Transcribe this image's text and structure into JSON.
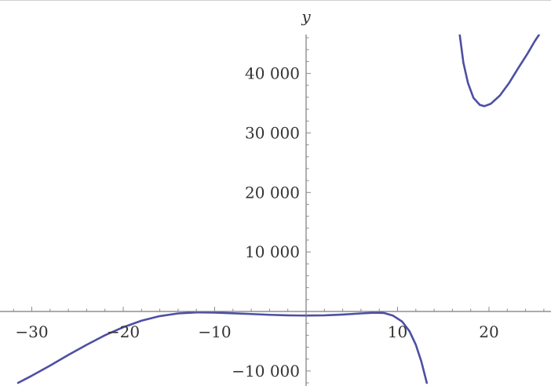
{
  "chart_data": {
    "type": "line",
    "title": "",
    "xlabel": "",
    "ylabel": "y",
    "xlim": [
      -33,
      26
    ],
    "ylim": [
      -12000,
      47000
    ],
    "grid": false,
    "x_ticks": [
      {
        "value": -30,
        "label": "−30"
      },
      {
        "value": -20,
        "label": "−20"
      },
      {
        "value": -10,
        "label": "−10"
      },
      {
        "value": 10,
        "label": "10"
      },
      {
        "value": 20,
        "label": "20"
      }
    ],
    "y_ticks": [
      {
        "value": -10000,
        "label": "−10 000"
      },
      {
        "value": 10000,
        "label": "10 000"
      },
      {
        "value": 20000,
        "label": "20 000"
      },
      {
        "value": 30000,
        "label": "30 000"
      },
      {
        "value": 40000,
        "label": "40 000"
      }
    ],
    "series": [
      {
        "color": "#4d4fa3",
        "segments": [
          [
            [
              -31.5,
              -12000
            ],
            [
              -30,
              -10800
            ],
            [
              -28,
              -9100
            ],
            [
              -26,
              -7300
            ],
            [
              -24,
              -5600
            ],
            [
              -22,
              -4000
            ],
            [
              -20,
              -2650
            ],
            [
              -18,
              -1550
            ],
            [
              -16,
              -780
            ],
            [
              -14,
              -330
            ],
            [
              -12,
              -160
            ],
            [
              -10,
              -190
            ],
            [
              -8,
              -300
            ],
            [
              -6,
              -430
            ],
            [
              -4,
              -560
            ],
            [
              -2,
              -650
            ],
            [
              0,
              -690
            ],
            [
              2,
              -650
            ],
            [
              4,
              -520
            ],
            [
              6,
              -330
            ],
            [
              7.5,
              -200
            ],
            [
              8.5,
              -250
            ],
            [
              9.5,
              -700
            ],
            [
              10.5,
              -1700
            ],
            [
              11.3,
              -3300
            ],
            [
              12,
              -5600
            ],
            [
              12.6,
              -8400
            ],
            [
              13.2,
              -12000
            ]
          ],
          [
            [
              16.8,
              46500
            ],
            [
              17.2,
              41800
            ],
            [
              17.7,
              38400
            ],
            [
              18.3,
              35900
            ],
            [
              19,
              34700
            ],
            [
              19.5,
              34500
            ],
            [
              20.2,
              34900
            ],
            [
              21.2,
              36300
            ],
            [
              22.2,
              38400
            ],
            [
              23.2,
              40900
            ],
            [
              24.2,
              43300
            ],
            [
              25,
              45400
            ],
            [
              25.6,
              46800
            ]
          ]
        ]
      }
    ]
  }
}
